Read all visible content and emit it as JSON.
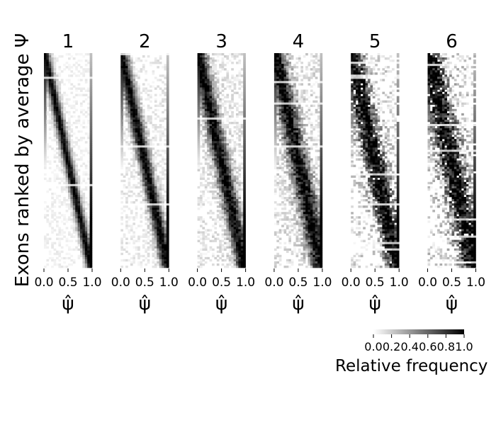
{
  "chart_data": {
    "type": "heatmap",
    "ylabel": "Exons ranked by average Ψ",
    "xlabel": "ψ̂",
    "panels": [
      {
        "title": "1",
        "xticks": [
          "0.0",
          "0.5",
          "1.0"
        ]
      },
      {
        "title": "2",
        "xticks": [
          "0.0",
          "0.5",
          "1.0"
        ]
      },
      {
        "title": "3",
        "xticks": [
          "0.0",
          "0.5",
          "1.0"
        ]
      },
      {
        "title": "4",
        "xticks": [
          "0.0",
          "0.5",
          "1.0"
        ]
      },
      {
        "title": "5",
        "xticks": [
          "0.0",
          "0.5",
          "1.0"
        ]
      },
      {
        "title": "6",
        "xticks": [
          "0.0",
          "0.5",
          "1.0"
        ]
      }
    ],
    "xlim": [
      0,
      1
    ],
    "colorbar": {
      "label": "Relative frequency",
      "ticks": [
        "0.0",
        "0.2",
        "0.4",
        "0.6",
        "0.8",
        "1.0"
      ],
      "range": [
        0,
        1
      ],
      "colormap": "greys"
    },
    "colors": {
      "high": "#000000",
      "low": "#ffffff"
    }
  }
}
